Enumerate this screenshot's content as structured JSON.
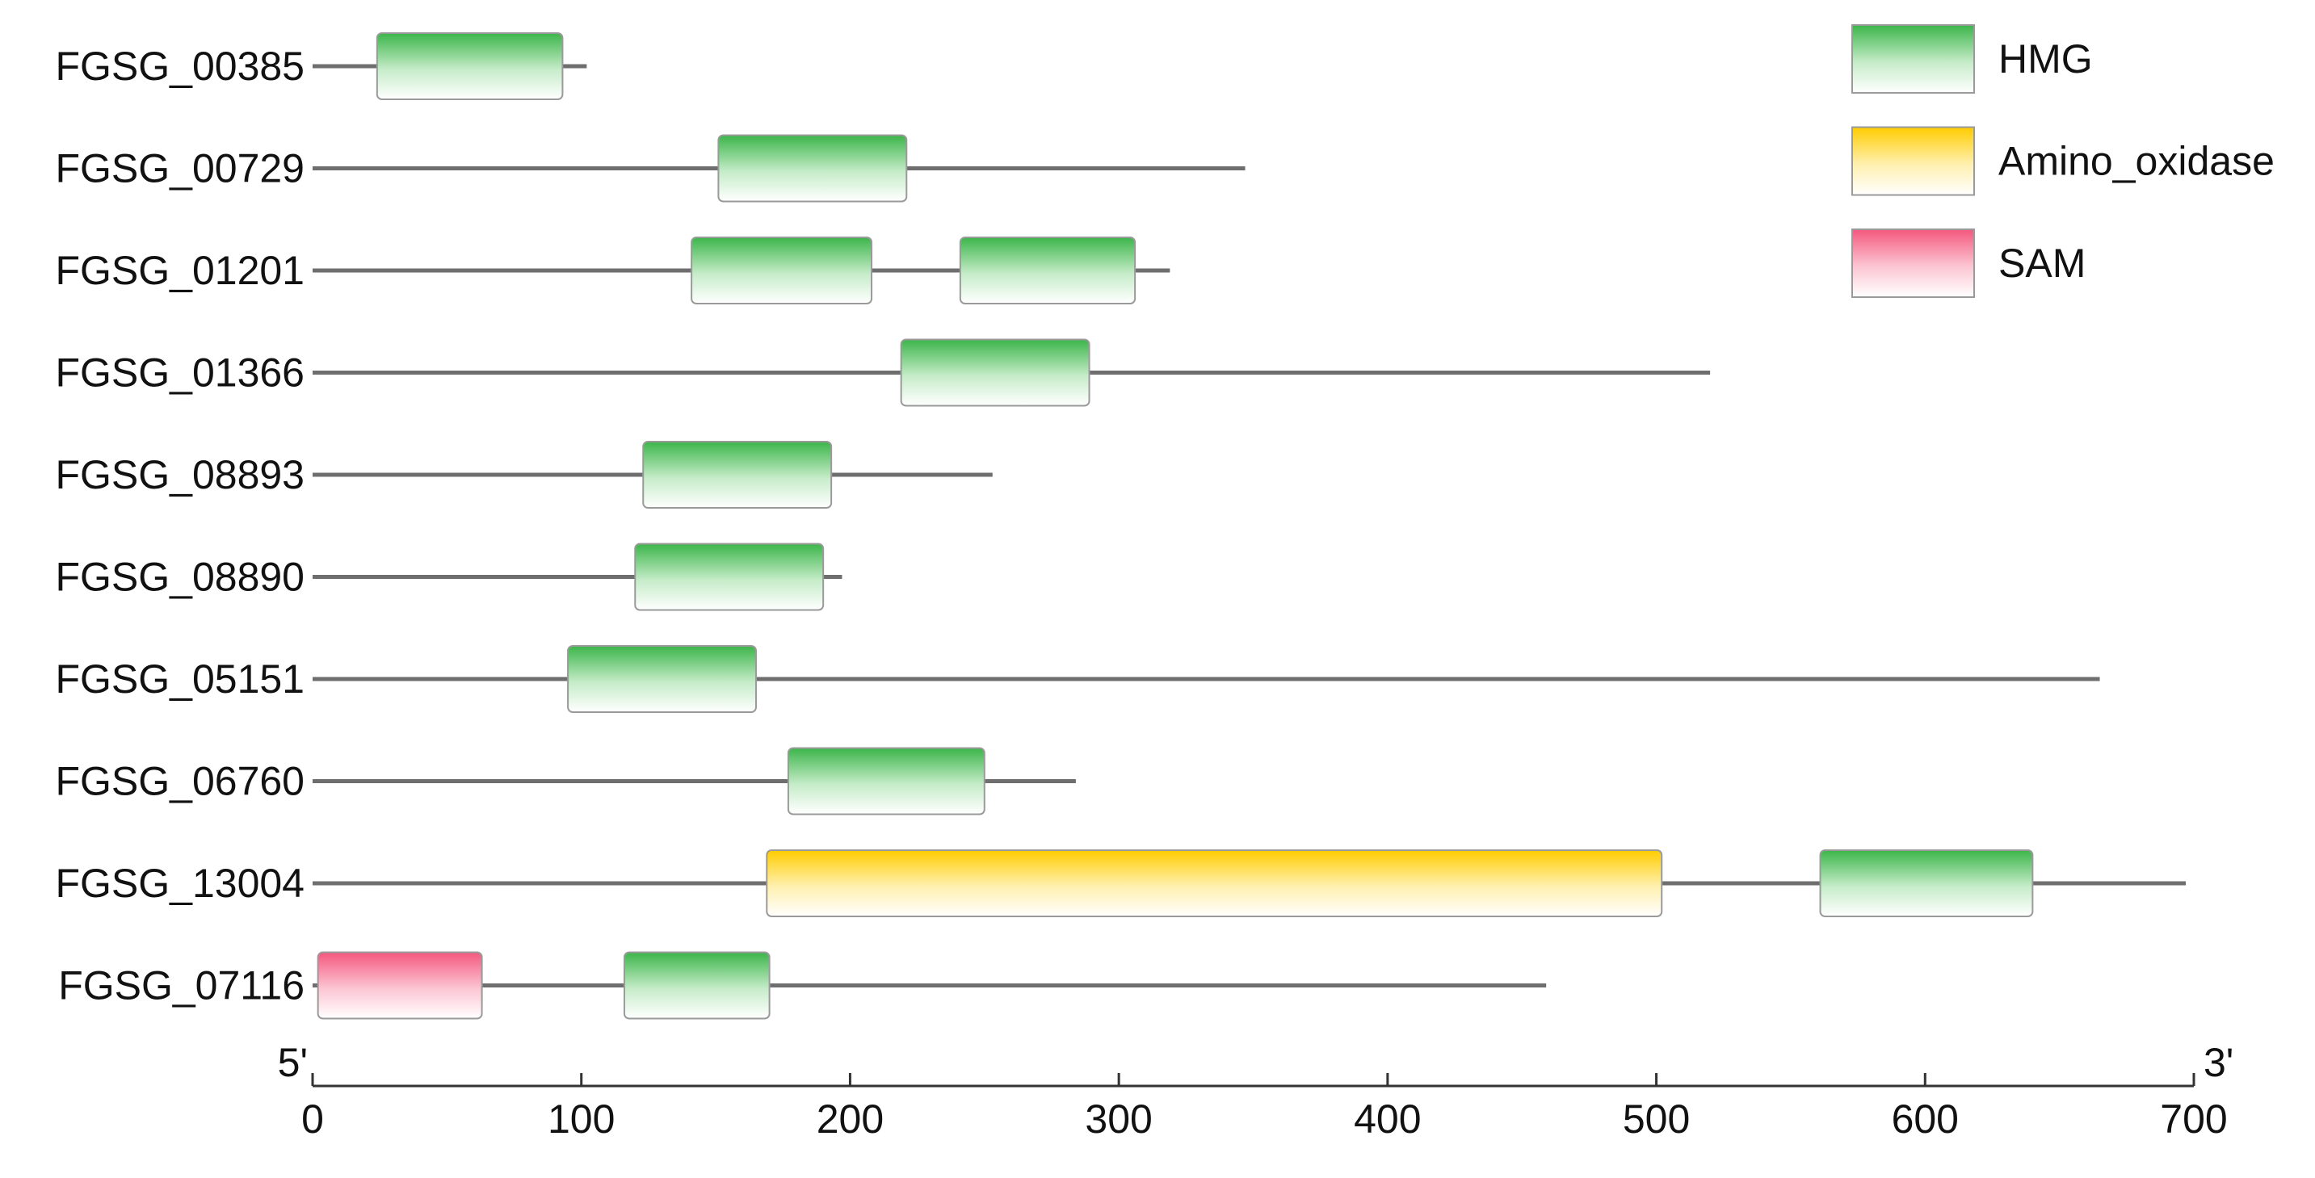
{
  "colors": {
    "HMG": "#3cb54a",
    "Amino_oxidase": "#ffcc00",
    "SAM": "#f4587e",
    "backbone": "#6e6e6e",
    "axis": "#333333"
  },
  "legend": [
    {
      "key": "HMG",
      "label": "HMG"
    },
    {
      "key": "Amino_oxidase",
      "label": "Amino_oxidase"
    },
    {
      "key": "SAM",
      "label": "SAM"
    }
  ],
  "axis": {
    "min": 0,
    "max": 700,
    "ticks": [
      "0",
      "100",
      "200",
      "300",
      "400",
      "500",
      "600",
      "700"
    ],
    "five_prime": "5'",
    "three_prime": "3'"
  },
  "genes": [
    {
      "id": "FGSG_00385",
      "length": 102,
      "domains": [
        {
          "type": "HMG",
          "start": 24,
          "end": 93
        }
      ]
    },
    {
      "id": "FGSG_00729",
      "length": 347,
      "domains": [
        {
          "type": "HMG",
          "start": 151,
          "end": 221
        }
      ]
    },
    {
      "id": "FGSG_01201",
      "length": 319,
      "domains": [
        {
          "type": "HMG",
          "start": 141,
          "end": 208
        },
        {
          "type": "HMG",
          "start": 241,
          "end": 306
        }
      ]
    },
    {
      "id": "FGSG_01366",
      "length": 520,
      "domains": [
        {
          "type": "HMG",
          "start": 219,
          "end": 289
        }
      ]
    },
    {
      "id": "FGSG_08893",
      "length": 253,
      "domains": [
        {
          "type": "HMG",
          "start": 123,
          "end": 193
        }
      ]
    },
    {
      "id": "FGSG_08890",
      "length": 197,
      "domains": [
        {
          "type": "HMG",
          "start": 120,
          "end": 190
        }
      ]
    },
    {
      "id": "FGSG_05151",
      "length": 665,
      "domains": [
        {
          "type": "HMG",
          "start": 95,
          "end": 165
        }
      ]
    },
    {
      "id": "FGSG_06760",
      "length": 284,
      "domains": [
        {
          "type": "HMG",
          "start": 177,
          "end": 250
        }
      ]
    },
    {
      "id": "FGSG_13004",
      "length": 697,
      "domains": [
        {
          "type": "Amino_oxidase",
          "start": 169,
          "end": 502
        },
        {
          "type": "HMG",
          "start": 561,
          "end": 640
        }
      ]
    },
    {
      "id": "FGSG_07116",
      "length": 459,
      "domains": [
        {
          "type": "SAM",
          "start": 2,
          "end": 63
        },
        {
          "type": "HMG",
          "start": 116,
          "end": 170
        }
      ]
    }
  ]
}
